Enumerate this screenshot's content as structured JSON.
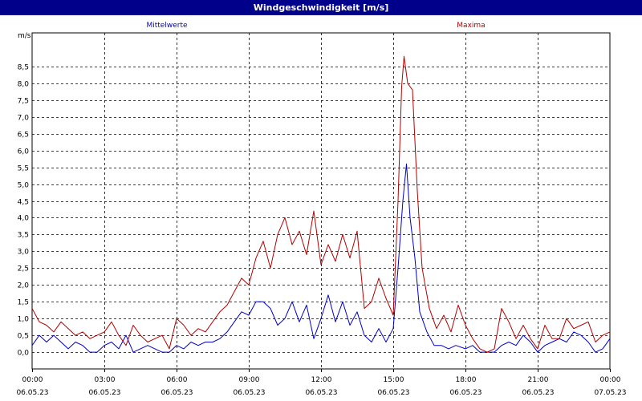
{
  "window": {
    "title": "Windgeschwindigkeit [m/s]"
  },
  "colors": {
    "title_bar": "#00008b",
    "mean": "#0000c8",
    "max": "#b40000",
    "grid": "#000000"
  },
  "chart_data": {
    "type": "line",
    "title": "Windgeschwindigkeit [m/s]",
    "ylabel": "m/s",
    "ylim": [
      -0.5,
      9.5
    ],
    "yticks": [
      0.0,
      0.5,
      1.0,
      1.5,
      2.0,
      2.5,
      3.0,
      3.5,
      4.0,
      4.5,
      5.0,
      5.5,
      6.0,
      6.5,
      7.0,
      7.5,
      8.0,
      8.5
    ],
    "ytick_labels": [
      "0,0",
      "0,5",
      "1,0",
      "1,5",
      "2,0",
      "2,5",
      "3,0",
      "3,5",
      "4,0",
      "4,5",
      "5,0",
      "5,5",
      "6,0",
      "6,5",
      "7,0",
      "7,5",
      "8,0",
      "8,5"
    ],
    "xlim_hours": [
      0,
      24
    ],
    "xticks": [
      {
        "hour": 0,
        "time": "00:00",
        "date": "06.05.23"
      },
      {
        "hour": 3,
        "time": "03:00",
        "date": "06.05.23"
      },
      {
        "hour": 6,
        "time": "06:00",
        "date": "06.05.23"
      },
      {
        "hour": 9,
        "time": "09:00",
        "date": "06.05.23"
      },
      {
        "hour": 12,
        "time": "12:00",
        "date": "06.05.23"
      },
      {
        "hour": 15,
        "time": "15:00",
        "date": "06.05.23"
      },
      {
        "hour": 18,
        "time": "18:00",
        "date": "06.05.23"
      },
      {
        "hour": 21,
        "time": "21:00",
        "date": "06.05.23"
      },
      {
        "hour": 24,
        "time": "00:00",
        "date": "07.05.23"
      }
    ],
    "grid": true,
    "series": [
      {
        "name": "Mittelwerte",
        "color": "#0000c8",
        "points": [
          [
            0,
            0.2
          ],
          [
            0.3,
            0.5
          ],
          [
            0.6,
            0.3
          ],
          [
            0.9,
            0.5
          ],
          [
            1.2,
            0.3
          ],
          [
            1.5,
            0.1
          ],
          [
            1.8,
            0.3
          ],
          [
            2.1,
            0.2
          ],
          [
            2.4,
            0.0
          ],
          [
            2.7,
            0.0
          ],
          [
            3.0,
            0.2
          ],
          [
            3.3,
            0.3
          ],
          [
            3.6,
            0.1
          ],
          [
            3.9,
            0.5
          ],
          [
            4.2,
            0.0
          ],
          [
            4.5,
            0.1
          ],
          [
            4.8,
            0.2
          ],
          [
            5.1,
            0.1
          ],
          [
            5.4,
            0.0
          ],
          [
            5.7,
            0.0
          ],
          [
            6.0,
            0.2
          ],
          [
            6.3,
            0.1
          ],
          [
            6.6,
            0.3
          ],
          [
            6.9,
            0.2
          ],
          [
            7.2,
            0.3
          ],
          [
            7.5,
            0.3
          ],
          [
            7.8,
            0.4
          ],
          [
            8.1,
            0.6
          ],
          [
            8.4,
            0.9
          ],
          [
            8.7,
            1.2
          ],
          [
            9.0,
            1.1
          ],
          [
            9.3,
            1.5
          ],
          [
            9.6,
            1.5
          ],
          [
            9.9,
            1.3
          ],
          [
            10.2,
            0.8
          ],
          [
            10.5,
            1.0
          ],
          [
            10.8,
            1.5
          ],
          [
            11.1,
            0.9
          ],
          [
            11.4,
            1.4
          ],
          [
            11.7,
            0.4
          ],
          [
            12.0,
            1.0
          ],
          [
            12.3,
            1.7
          ],
          [
            12.6,
            0.9
          ],
          [
            12.9,
            1.5
          ],
          [
            13.2,
            0.8
          ],
          [
            13.5,
            1.2
          ],
          [
            13.8,
            0.5
          ],
          [
            14.1,
            0.3
          ],
          [
            14.4,
            0.7
          ],
          [
            14.7,
            0.3
          ],
          [
            15.0,
            0.7
          ],
          [
            15.2,
            2.5
          ],
          [
            15.4,
            4.5
          ],
          [
            15.55,
            5.6
          ],
          [
            15.7,
            4.0
          ],
          [
            15.9,
            2.8
          ],
          [
            16.1,
            1.2
          ],
          [
            16.4,
            0.6
          ],
          [
            16.7,
            0.2
          ],
          [
            17.0,
            0.2
          ],
          [
            17.3,
            0.1
          ],
          [
            17.6,
            0.2
          ],
          [
            18.0,
            0.1
          ],
          [
            18.3,
            0.2
          ],
          [
            18.6,
            0.0
          ],
          [
            18.9,
            0.0
          ],
          [
            19.2,
            0.0
          ],
          [
            19.5,
            0.2
          ],
          [
            19.8,
            0.3
          ],
          [
            20.1,
            0.2
          ],
          [
            20.4,
            0.5
          ],
          [
            20.7,
            0.3
          ],
          [
            21.0,
            0.0
          ],
          [
            21.3,
            0.2
          ],
          [
            21.6,
            0.3
          ],
          [
            21.9,
            0.4
          ],
          [
            22.2,
            0.3
          ],
          [
            22.5,
            0.6
          ],
          [
            22.8,
            0.5
          ],
          [
            23.1,
            0.3
          ],
          [
            23.4,
            0.0
          ],
          [
            23.7,
            0.1
          ],
          [
            24.0,
            0.4
          ]
        ]
      },
      {
        "name": "Maxima",
        "color": "#b40000",
        "points": [
          [
            0,
            1.3
          ],
          [
            0.3,
            0.9
          ],
          [
            0.6,
            0.8
          ],
          [
            0.9,
            0.6
          ],
          [
            1.2,
            0.9
          ],
          [
            1.5,
            0.7
          ],
          [
            1.8,
            0.5
          ],
          [
            2.1,
            0.6
          ],
          [
            2.4,
            0.4
          ],
          [
            2.7,
            0.5
          ],
          [
            3.0,
            0.6
          ],
          [
            3.3,
            0.9
          ],
          [
            3.6,
            0.5
          ],
          [
            3.9,
            0.2
          ],
          [
            4.2,
            0.8
          ],
          [
            4.5,
            0.5
          ],
          [
            4.8,
            0.3
          ],
          [
            5.1,
            0.4
          ],
          [
            5.4,
            0.5
          ],
          [
            5.7,
            0.1
          ],
          [
            6.0,
            1.0
          ],
          [
            6.3,
            0.8
          ],
          [
            6.6,
            0.5
          ],
          [
            6.9,
            0.7
          ],
          [
            7.2,
            0.6
          ],
          [
            7.5,
            0.9
          ],
          [
            7.8,
            1.2
          ],
          [
            8.1,
            1.4
          ],
          [
            8.4,
            1.8
          ],
          [
            8.7,
            2.2
          ],
          [
            9.0,
            2.0
          ],
          [
            9.3,
            2.8
          ],
          [
            9.6,
            3.3
          ],
          [
            9.9,
            2.5
          ],
          [
            10.2,
            3.5
          ],
          [
            10.5,
            4.0
          ],
          [
            10.8,
            3.2
          ],
          [
            11.1,
            3.6
          ],
          [
            11.4,
            2.9
          ],
          [
            11.7,
            4.2
          ],
          [
            12.0,
            2.6
          ],
          [
            12.3,
            3.2
          ],
          [
            12.6,
            2.7
          ],
          [
            12.9,
            3.5
          ],
          [
            13.2,
            2.8
          ],
          [
            13.5,
            3.6
          ],
          [
            13.8,
            1.3
          ],
          [
            14.1,
            1.5
          ],
          [
            14.4,
            2.2
          ],
          [
            14.7,
            1.6
          ],
          [
            15.0,
            1.1
          ],
          [
            15.2,
            4.5
          ],
          [
            15.35,
            7.9
          ],
          [
            15.45,
            8.8
          ],
          [
            15.6,
            8.0
          ],
          [
            15.8,
            7.8
          ],
          [
            16.0,
            4.8
          ],
          [
            16.2,
            2.5
          ],
          [
            16.5,
            1.3
          ],
          [
            16.8,
            0.7
          ],
          [
            17.1,
            1.1
          ],
          [
            17.4,
            0.6
          ],
          [
            17.7,
            1.4
          ],
          [
            18.0,
            0.8
          ],
          [
            18.3,
            0.4
          ],
          [
            18.6,
            0.1
          ],
          [
            18.9,
            0.0
          ],
          [
            19.2,
            0.1
          ],
          [
            19.5,
            1.3
          ],
          [
            19.8,
            0.9
          ],
          [
            20.1,
            0.4
          ],
          [
            20.4,
            0.8
          ],
          [
            20.7,
            0.4
          ],
          [
            21.0,
            0.1
          ],
          [
            21.3,
            0.8
          ],
          [
            21.6,
            0.4
          ],
          [
            21.9,
            0.4
          ],
          [
            22.2,
            1.0
          ],
          [
            22.5,
            0.7
          ],
          [
            22.8,
            0.8
          ],
          [
            23.1,
            0.9
          ],
          [
            23.4,
            0.3
          ],
          [
            23.7,
            0.5
          ],
          [
            24.0,
            0.6
          ]
        ]
      }
    ]
  }
}
